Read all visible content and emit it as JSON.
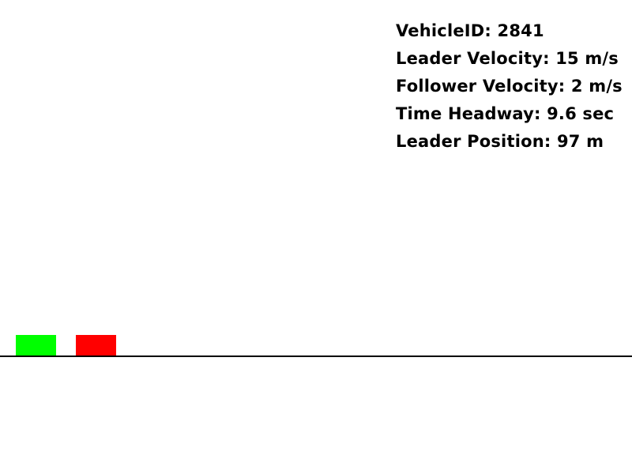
{
  "hud": {
    "vehicle_id": "VehicleID: 2841",
    "leader_velocity": "Leader Velocity: 15 m/s",
    "follower_velocity": "Follower Velocity: 2 m/s",
    "time_headway": "Time Headway: 9.6 sec",
    "leader_position": "Leader Position: 97 m"
  },
  "vehicles": {
    "follower_color": "#00ff00",
    "leader_color": "#ff0000"
  },
  "road": {
    "color": "#000000"
  }
}
